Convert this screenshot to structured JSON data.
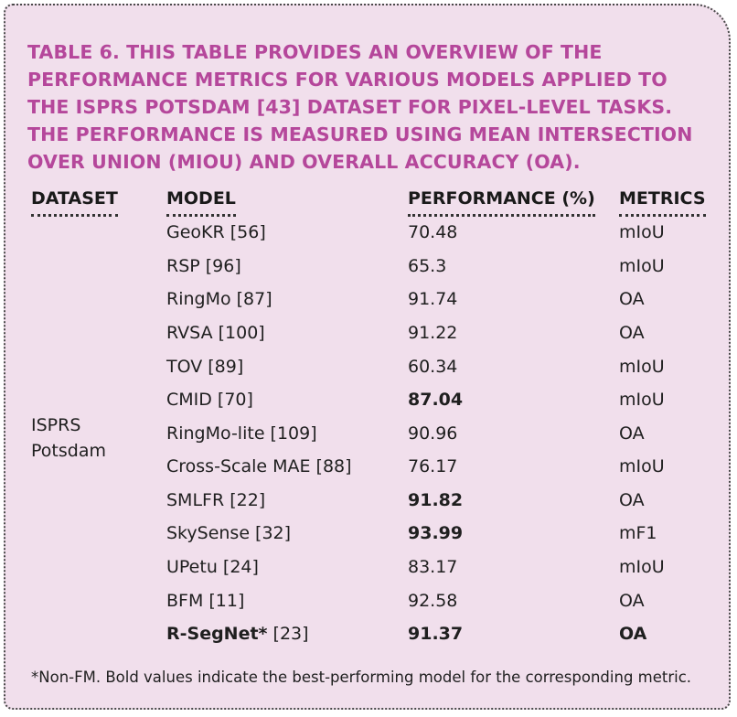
{
  "caption": "TABLE 6. THIS TABLE PROVIDES AN OVERVIEW OF THE PERFORMANCE METRICS FOR VARIOUS MODELS APPLIED TO THE ISPRS POTSDAM [43] DATASET FOR PIXEL-LEVEL TASKS. THE PERFORMANCE IS MEASURED USING MEAN INTERSECTION OVER UNION (MIOU) AND OVERALL ACCURACY (OA).",
  "headers": {
    "dataset": "DATASET",
    "model": "MODEL",
    "performance": "PERFORMANCE (%)",
    "metrics": "METRICS"
  },
  "dataset_name": "ISPRS Potsdam",
  "rows": [
    {
      "model": "GeoKR [56]",
      "performance": "70.48",
      "metric": "mIoU"
    },
    {
      "model": "RSP [96]",
      "performance": "65.3",
      "metric": "mIoU"
    },
    {
      "model": "RingMo [87]",
      "performance": "91.74",
      "metric": "OA"
    },
    {
      "model": "RVSA [100]",
      "performance": "91.22",
      "metric": "OA"
    },
    {
      "model": "TOV [89]",
      "performance": "60.34",
      "metric": "mIoU"
    },
    {
      "model": "CMID [70]",
      "performance": "87.04",
      "metric": "mIoU"
    },
    {
      "model": "RingMo-lite [109]",
      "performance": "90.96",
      "metric": "OA"
    },
    {
      "model": "Cross-Scale MAE [88]",
      "performance": "76.17",
      "metric": "mIoU"
    },
    {
      "model": "SMLFR [22]",
      "performance": "91.82",
      "metric": "OA"
    },
    {
      "model": "SkySense [32]",
      "performance": "93.99",
      "metric": "mF1"
    },
    {
      "model": "UPetu [24]",
      "performance": "83.17",
      "metric": "mIoU"
    },
    {
      "model": "BFM [11]",
      "performance": "92.58",
      "metric": "OA"
    },
    {
      "model_bold": "R-SegNet*",
      "model_ref": " [23]",
      "performance": "91.37",
      "metric": "OA"
    }
  ],
  "footnote": "*Non-FM. Bold values indicate the best-performing model for the corresponding metric.",
  "colors": {
    "panel_bg": "#f1dfec",
    "caption": "#b5479b",
    "text": "#1f1f1f"
  }
}
